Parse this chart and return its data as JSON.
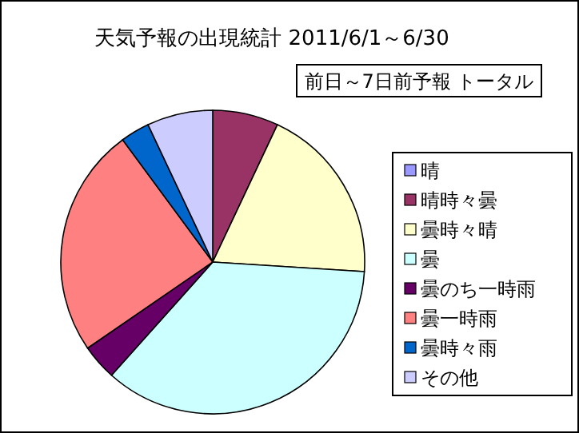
{
  "chart_data": {
    "type": "pie",
    "title": "天気予報の出現統計 2011/6/1～6/30",
    "subtitle": "前日～7日前予報 トータル",
    "categories": [
      "晴",
      "晴時々曇",
      "曇時々晴",
      "曇",
      "曇のち一時雨",
      "曇一時雨",
      "曇時々雨",
      "その他"
    ],
    "values": [
      0,
      7,
      19,
      35.6,
      3.8,
      24.5,
      3.1,
      7
    ],
    "colors": [
      "#9999ff",
      "#993366",
      "#ffffcc",
      "#ccffff",
      "#660066",
      "#ff8080",
      "#0066cc",
      "#ccccff"
    ],
    "legend": "right"
  }
}
